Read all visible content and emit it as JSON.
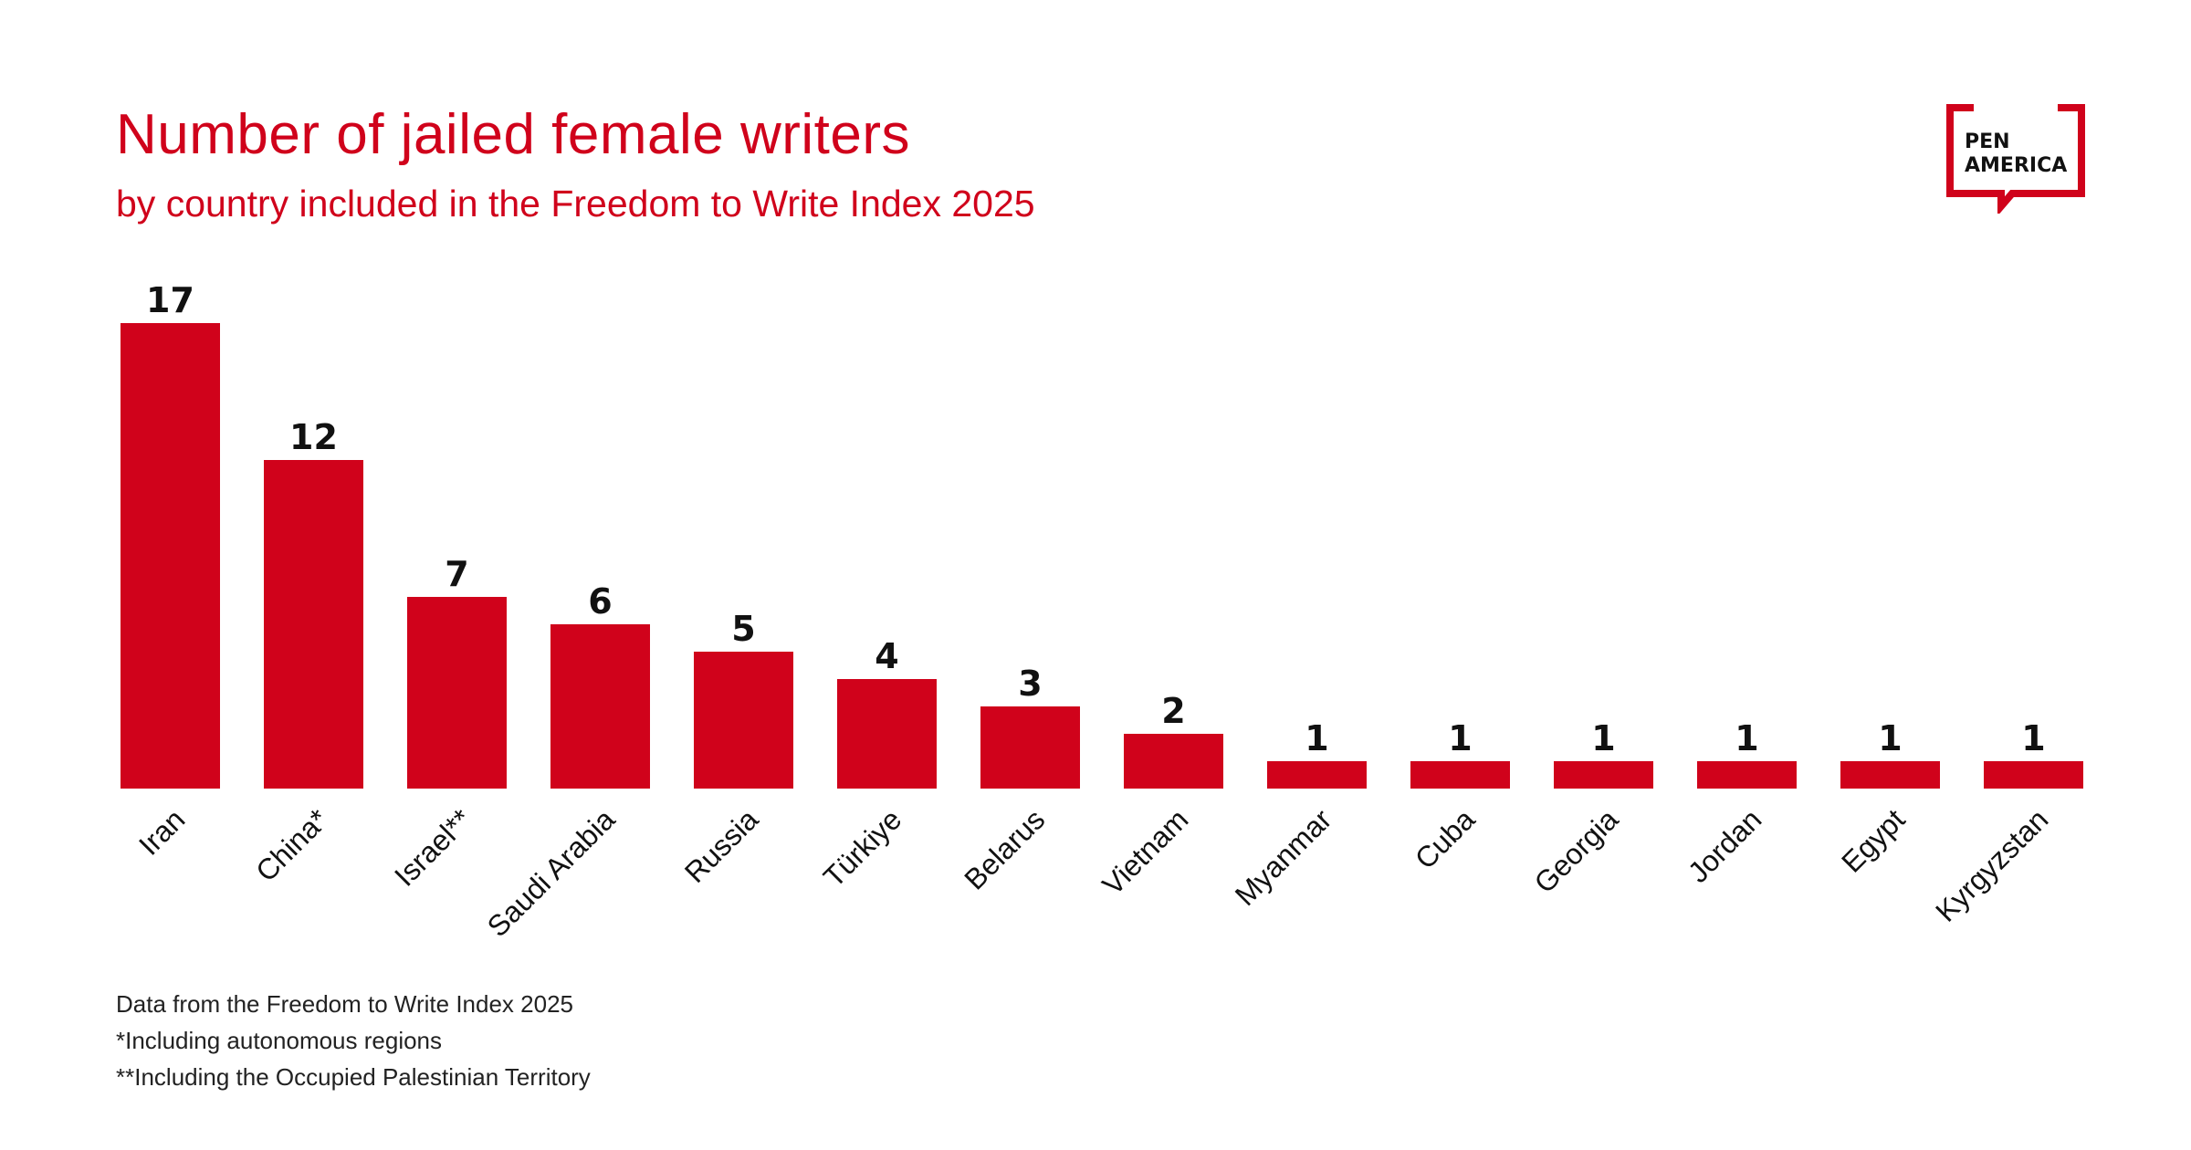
{
  "header": {
    "title": "Number of jailed female writers",
    "subtitle": "by country included in the Freedom to Write Index 2025"
  },
  "logo": {
    "line1": "PEN",
    "line2": "AMERICA",
    "color": "#d0021b"
  },
  "colors": {
    "accent": "#d0021b",
    "bar": "#d0021b",
    "label": "#111111"
  },
  "chart_data": {
    "type": "bar",
    "title": "Number of jailed female writers",
    "subtitle": "by country included in the Freedom to Write Index 2025",
    "categories": [
      "Iran",
      "China*",
      "Israel**",
      "Saudi Arabia",
      "Russia",
      "Türkiye",
      "Belarus",
      "Vietnam",
      "Myanmar",
      "Cuba",
      "Georgia",
      "Jordan",
      "Egypt",
      "Kyrgyzstan"
    ],
    "values": [
      17,
      12,
      7,
      6,
      5,
      4,
      3,
      2,
      1,
      1,
      1,
      1,
      1,
      1
    ],
    "xlabel": "",
    "ylabel": "",
    "ylim": [
      0,
      17
    ],
    "grid": false,
    "legend": "none",
    "data_labels": true
  },
  "footnotes": {
    "source": "Data from the Freedom to Write Index 2025",
    "note1": "*Including autonomous regions",
    "note2": "**Including the Occupied Palestinian Territory"
  }
}
